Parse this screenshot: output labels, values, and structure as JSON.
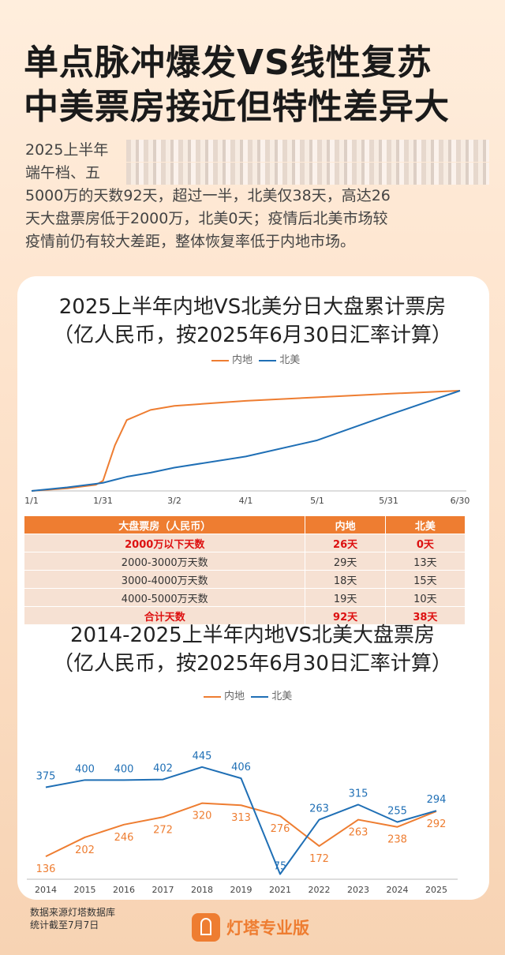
{
  "headline": {
    "line1": "单点脉冲爆发VS线性复苏",
    "line2": "中美票房接近但特性差异大"
  },
  "intro": {
    "line1": "2025上半年",
    "line2": "端午档、五",
    "line3": "5000万的天数92天，超过一半，北美仅38天，高达26",
    "line4": "天大盘票房低于2000万，北美0天；疫情后北美市场较",
    "line5": "疫情前仍有较大差距，整体恢复率低于内地市场。"
  },
  "colors": {
    "mainland": "#ee7d31",
    "northamerica": "#1f6fb5",
    "accent": "#ee7d31"
  },
  "chart1": {
    "title1": "2025上半年内地VS北美分日大盘累计票房",
    "title2": "（亿人民币，按2025年6月30日汇率计算）",
    "legend": [
      "内地",
      "北美"
    ]
  },
  "table": {
    "headers": [
      "大盘票房（人民币）",
      "内地",
      "北美"
    ],
    "rows": [
      {
        "label": "2000万以下天数",
        "mainland": "26天",
        "na": "0天",
        "highlight": true
      },
      {
        "label": "2000-3000万天数",
        "mainland": "29天",
        "na": "13天",
        "highlight": false
      },
      {
        "label": "3000-4000万天数",
        "mainland": "18天",
        "na": "15天",
        "highlight": false
      },
      {
        "label": "4000-5000万天数",
        "mainland": "19天",
        "na": "10天",
        "highlight": false
      },
      {
        "label": "合计天数",
        "mainland": "92天",
        "na": "38天",
        "highlight": true
      }
    ]
  },
  "chart2": {
    "title1": "2014-2025上半年内地VS北美大盘票房",
    "title2": "（亿人民币，按2025年6月30日汇率计算）",
    "legend": [
      "内地",
      "北美"
    ]
  },
  "chart_data": [
    {
      "type": "line",
      "title": "2025上半年内地VS北美分日大盘累计票房",
      "subtitle": "（亿人民币，按2025年6月30日汇率计算）",
      "x_ticks": [
        "1/1",
        "1/31",
        "3/2",
        "4/1",
        "5/1",
        "5/31",
        "6/30"
      ],
      "x": [
        "1/1",
        "1/16",
        "1/28",
        "1/31",
        "2/5",
        "2/10",
        "2/20",
        "3/2",
        "4/1",
        "5/1",
        "5/31",
        "6/30"
      ],
      "series": [
        {
          "name": "内地",
          "values": [
            0,
            5,
            12,
            20,
            90,
            140,
            160,
            168,
            178,
            185,
            192,
            198
          ]
        },
        {
          "name": "北美",
          "values": [
            0,
            7,
            14,
            16,
            22,
            28,
            36,
            46,
            68,
            100,
            150,
            198
          ]
        }
      ],
      "legend": "top-center",
      "grid": false
    },
    {
      "type": "line",
      "title": "2014-2025上半年内地VS北美大盘票房",
      "subtitle": "（亿人民币，按2025年6月30日汇率计算）",
      "categories": [
        "2014",
        "2015",
        "2016",
        "2017",
        "2018",
        "2019",
        "2021",
        "2022",
        "2023",
        "2024",
        "2025"
      ],
      "series": [
        {
          "name": "内地",
          "values": [
            136,
            202,
            246,
            272,
            320,
            313,
            276,
            172,
            263,
            238,
            292
          ]
        },
        {
          "name": "北美",
          "values": [
            375,
            400,
            400,
            402,
            445,
            406,
            75,
            263,
            315,
            255,
            294
          ]
        }
      ],
      "legend": "top-center",
      "grid": false
    }
  ],
  "footer": {
    "source": "数据来源灯塔数据库",
    "cutoff": "统计截至7月7日",
    "brand": "灯塔专业版"
  }
}
